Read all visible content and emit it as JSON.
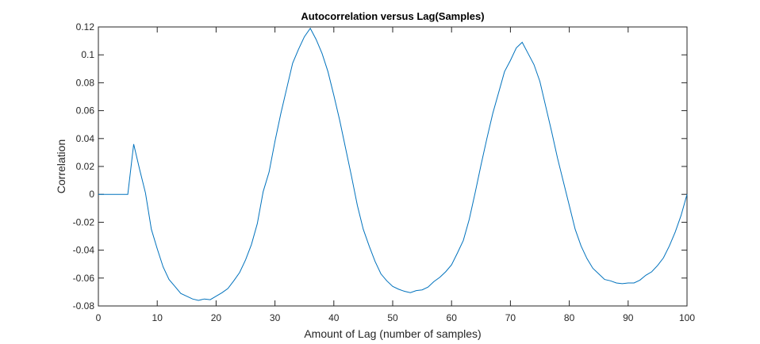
{
  "chart_data": {
    "type": "line",
    "title": "Autocorrelation versus Lag(Samples)",
    "xlabel": "Amount of Lag (number of samples)",
    "ylabel": "Correlation",
    "xlim": [
      0,
      100
    ],
    "ylim": [
      -0.08,
      0.12
    ],
    "xticks": [
      0,
      10,
      20,
      30,
      40,
      50,
      60,
      70,
      80,
      90,
      100
    ],
    "xtick_labels": [
      "0",
      "10",
      "20",
      "30",
      "40",
      "50",
      "60",
      "70",
      "80",
      "90",
      "100"
    ],
    "yticks": [
      -0.08,
      -0.06,
      -0.04,
      -0.02,
      0,
      0.02,
      0.04,
      0.06,
      0.08,
      0.1,
      0.12
    ],
    "ytick_labels": [
      "-0.08",
      "-0.06",
      "-0.04",
      "-0.02",
      "0",
      "0.02",
      "0.04",
      "0.06",
      "0.08",
      "0.1",
      "0.12"
    ],
    "grid": false,
    "line_color": "#0072BD",
    "series": [
      {
        "x": [
          0,
          1,
          2,
          3,
          4,
          5,
          6,
          7,
          8,
          9,
          10,
          11,
          12,
          13,
          14,
          15,
          16,
          17,
          18,
          19,
          20,
          21,
          22,
          23,
          24,
          25,
          26,
          27,
          28,
          29,
          30,
          31,
          32,
          33,
          34,
          35,
          36,
          37,
          38,
          39,
          40,
          41,
          42,
          43,
          44,
          45,
          46,
          47,
          48,
          49,
          50,
          51,
          52,
          53,
          54,
          55,
          56,
          57,
          58,
          59,
          60,
          61,
          62,
          63,
          64,
          65,
          66,
          67,
          68,
          69,
          70,
          71,
          72,
          73,
          74,
          75,
          76,
          77,
          78,
          79,
          80,
          81,
          82,
          83,
          84,
          85,
          86,
          87,
          88,
          89,
          90,
          91,
          92,
          93,
          94,
          95,
          96,
          97,
          98,
          99,
          100
        ],
        "y": [
          0,
          0,
          0,
          0,
          0,
          0,
          0.036,
          0.018,
          0.001,
          -0.025,
          -0.039,
          -0.052,
          -0.061,
          -0.066,
          -0.071,
          -0.073,
          -0.075,
          -0.076,
          -0.075,
          -0.0755,
          -0.073,
          -0.0705,
          -0.0675,
          -0.062,
          -0.056,
          -0.047,
          -0.036,
          -0.021,
          0.002,
          0.016,
          0.038,
          0.058,
          0.076,
          0.094,
          0.104,
          0.113,
          0.119,
          0.111,
          0.101,
          0.088,
          0.071,
          0.053,
          0.033,
          0.013,
          -0.008,
          -0.025,
          -0.037,
          -0.048,
          -0.057,
          -0.062,
          -0.066,
          -0.068,
          -0.0695,
          -0.0705,
          -0.069,
          -0.0685,
          -0.0665,
          -0.0625,
          -0.0595,
          -0.0555,
          -0.0505,
          -0.042,
          -0.033,
          -0.018,
          0.001,
          0.021,
          0.04,
          0.058,
          0.073,
          0.088,
          0.096,
          0.105,
          0.109,
          0.101,
          0.093,
          0.081,
          0.063,
          0.045,
          0.026,
          0.009,
          -0.008,
          -0.025,
          -0.037,
          -0.046,
          -0.053,
          -0.057,
          -0.061,
          -0.062,
          -0.0635,
          -0.064,
          -0.0635,
          -0.0635,
          -0.0615,
          -0.058,
          -0.0555,
          -0.051,
          -0.0455,
          -0.037,
          -0.027,
          -0.015,
          0
        ]
      }
    ]
  }
}
